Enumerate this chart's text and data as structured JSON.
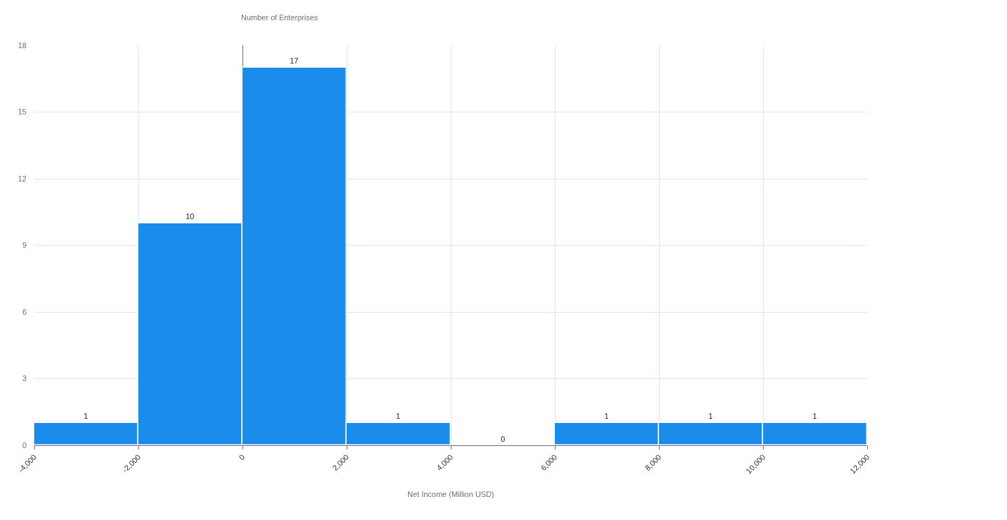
{
  "chart_data": {
    "type": "histogram",
    "xlabel": "Net Income (Million USD)",
    "ylabel": "Number of Enterprises",
    "bins": [
      -4000,
      -2000,
      0,
      2000,
      4000,
      6000,
      8000,
      10000,
      12000
    ],
    "values": [
      1,
      10,
      17,
      1,
      0,
      1,
      1,
      1
    ],
    "color": "#1a8cec",
    "xlim": [
      -4000,
      12000
    ],
    "xticks": [
      {
        "value": -4000,
        "label": "-4,000"
      },
      {
        "value": -2000,
        "label": "-2,000"
      },
      0,
      {
        "value": 2000,
        "label": "2,000"
      },
      {
        "value": 4000,
        "label": "4,000"
      },
      {
        "value": 6000,
        "label": "6,000"
      },
      {
        "value": 8000,
        "label": "8,000"
      },
      {
        "value": 10000,
        "label": "10,000"
      },
      {
        "value": 12000,
        "label": "12,000"
      }
    ],
    "ylim": [
      0,
      18
    ],
    "yticks": [
      0,
      3,
      6,
      9,
      12,
      15,
      18
    ],
    "grid": true,
    "data_labels": true
  }
}
